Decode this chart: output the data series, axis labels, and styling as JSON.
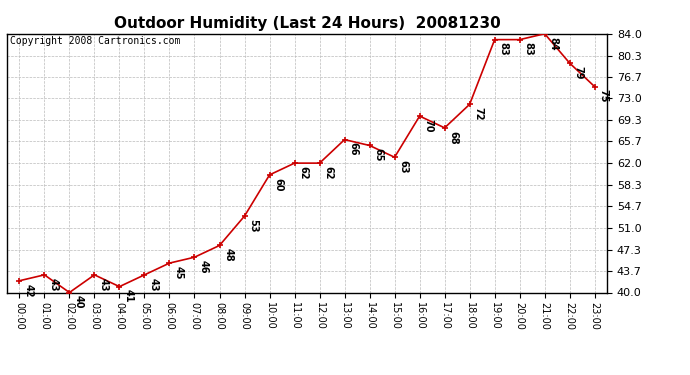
{
  "title": "Outdoor Humidity (Last 24 Hours)  20081230",
  "copyright": "Copyright 2008 Cartronics.com",
  "hours": [
    0,
    1,
    2,
    3,
    4,
    5,
    6,
    7,
    8,
    9,
    10,
    11,
    12,
    13,
    14,
    15,
    16,
    17,
    18,
    19,
    20,
    21,
    22,
    23
  ],
  "hour_labels": [
    "00:00",
    "01:00",
    "02:00",
    "03:00",
    "04:00",
    "05:00",
    "06:00",
    "07:00",
    "08:00",
    "09:00",
    "10:00",
    "11:00",
    "12:00",
    "13:00",
    "14:00",
    "15:00",
    "16:00",
    "17:00",
    "18:00",
    "19:00",
    "20:00",
    "21:00",
    "22:00",
    "23:00"
  ],
  "values": [
    42,
    43,
    40,
    43,
    41,
    43,
    45,
    46,
    48,
    53,
    60,
    62,
    62,
    66,
    65,
    63,
    70,
    68,
    72,
    83,
    83,
    84,
    79,
    75
  ],
  "ylim": [
    40.0,
    84.0
  ],
  "yticks": [
    40.0,
    43.7,
    47.3,
    51.0,
    54.7,
    58.3,
    62.0,
    65.7,
    69.3,
    73.0,
    76.7,
    80.3,
    84.0
  ],
  "line_color": "#cc0000",
  "marker_color": "#cc0000",
  "bg_color": "#ffffff",
  "grid_color": "#bbbbbb",
  "title_fontsize": 11,
  "annotation_fontsize": 7,
  "copyright_fontsize": 7,
  "ytick_fontsize": 8,
  "xtick_fontsize": 7
}
